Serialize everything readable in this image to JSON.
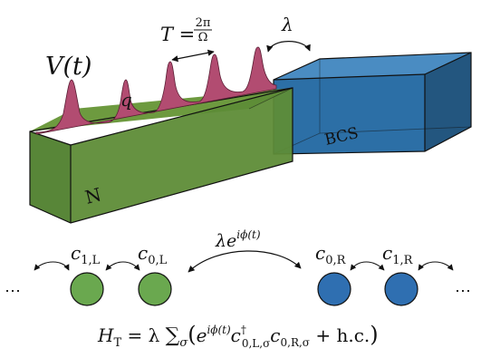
{
  "labels": {
    "potential": "V(t)",
    "charge": "q",
    "period_lhs": "T =",
    "period_num": "2π",
    "period_den": "Ω",
    "coupling": "λ",
    "normal_lead": "N",
    "superconductor": "BCS",
    "tunneling_base": "λe",
    "tunneling_exp": "iϕ(t)"
  },
  "sites": {
    "left": [
      {
        "base": "c",
        "sub": "1,L"
      },
      {
        "base": "c",
        "sub": "0,L"
      }
    ],
    "right": [
      {
        "base": "c",
        "sub": "0,R"
      },
      {
        "base": "c",
        "sub": "1,R"
      }
    ],
    "ellipsis": "⋯"
  },
  "hamiltonian": {
    "lhs": "H",
    "lhs_sub": "T",
    "eq": " = λ ",
    "sum": "∑",
    "sum_sub": "σ",
    "paren_open": "(",
    "e": "e",
    "e_sup": "iϕ(t)",
    "c1": "c",
    "c1_sup": "†",
    "c1_sub": "0,L,σ",
    "c2": "c",
    "c2_sub": "0,R,σ",
    "hc": " + h.c.",
    "paren_close": ")"
  },
  "colors": {
    "normal_front": "#4f7f2d",
    "normal_top": "#6d9a3f",
    "normal_side": "#3c6320",
    "bcs_front": "#2c6fa6",
    "bcs_top": "#4a8cc2",
    "bcs_side": "#23567f",
    "pulse": "#b24c71",
    "site_green": "#6aa84f",
    "site_blue": "#2f6fb1"
  }
}
